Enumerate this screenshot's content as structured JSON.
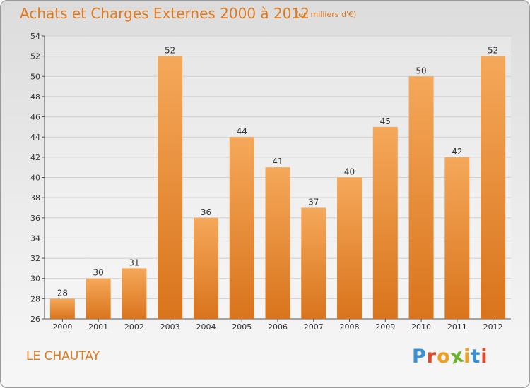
{
  "title": "Achats et Charges Externes 2000 à 2012",
  "subtitle": "(en milliers d'€)",
  "commune": "LE CHAUTAY",
  "brand": {
    "letters": [
      "P",
      "r",
      "o",
      "x",
      "i",
      "t",
      "i"
    ],
    "colors": [
      "#3a8fd6",
      "#e04a2a",
      "#f0a020",
      "#6ab42c",
      "#f0a020",
      "#3a8fd6",
      "#e04a2a"
    ]
  },
  "colors": {
    "bar_top": "#f5a85a",
    "bar_bottom": "#d9741c",
    "text": "#333333",
    "accent": "#e07a1c",
    "grid": "#cfcfcf"
  },
  "chart_data": {
    "type": "bar",
    "categories": [
      "2000",
      "2001",
      "2002",
      "2003",
      "2004",
      "2005",
      "2006",
      "2007",
      "2008",
      "2009",
      "2010",
      "2011",
      "2012"
    ],
    "values": [
      28,
      30,
      31,
      52,
      36,
      44,
      41,
      37,
      40,
      45,
      50,
      42,
      52
    ],
    "ylim": [
      26,
      54
    ],
    "yticks": [
      26,
      28,
      30,
      32,
      34,
      36,
      38,
      40,
      42,
      44,
      46,
      48,
      50,
      52,
      54
    ],
    "grid": true,
    "data_labels": true
  }
}
